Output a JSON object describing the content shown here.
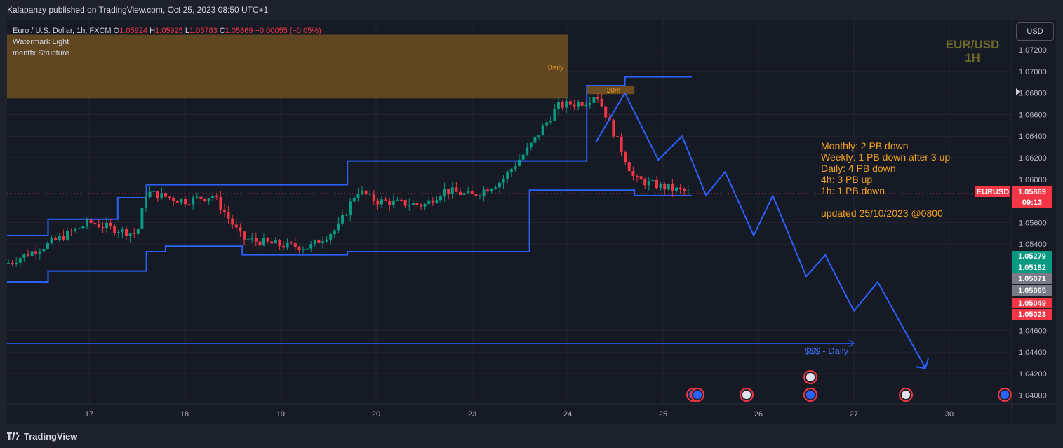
{
  "header": {
    "published": "Kalapanzy published on TradingView.com, Oct 25, 2023 08:50 UTC+1"
  },
  "legend": {
    "symbol": "Euro / U.S. Dollar, 1h, FXCM",
    "o_label": "O",
    "o": "1.05924",
    "h_label": "H",
    "h": "1.05925",
    "l_label": "L",
    "l": "1.05783",
    "c_label": "C",
    "c": "1.05869",
    "change": "−0.00055 (−0.05%)",
    "indicator1": "Watermark Light",
    "indicator2": "mentfx Structure"
  },
  "currency_button": "USD",
  "watermark": {
    "line1": "EUR/USD",
    "line2": "1H"
  },
  "notes": {
    "l1": "Monthly: 2 PB down",
    "l2": "Weekly: 1 PB down after 3 up",
    "l3": "Daily: 4 PB down",
    "l4": "4h: 3 PB up",
    "l5": "1h: 1 PB down",
    "l6": "updated 25/10/2023 @0800"
  },
  "zone_labels": {
    "daily": "Daily",
    "m30": "30m",
    "liquidity": "$$$ - Daily"
  },
  "price_tags": {
    "symbol": "EURUSD",
    "last": "1.05869",
    "countdown": "09:13",
    "t1": "1.05279",
    "t2": "1.05182",
    "t3": "1.05071",
    "t4": "1.05065",
    "t5": "1.05049",
    "t6": "1.05023"
  },
  "footer": {
    "brand": "TradingView"
  },
  "colors": {
    "up": "#089981",
    "down": "#f23645",
    "structure": "#2962ff",
    "zone": "#7a5520",
    "notes": "#f0a020"
  },
  "chart_data": {
    "type": "candlestick",
    "x_ticks": [
      "17",
      "18",
      "19",
      "20",
      "23",
      "24",
      "25",
      "26",
      "27",
      "30"
    ],
    "y_ticks": [
      "1.07200",
      "1.07000",
      "1.06800",
      "1.06600",
      "1.06400",
      "1.06200",
      "1.06000",
      "1.05600",
      "1.05400",
      "1.04600",
      "1.04400",
      "1.04200",
      "1.04000"
    ],
    "ylim": [
      1.0392,
      1.0748
    ],
    "last_price": 1.05869,
    "close_path": [
      [
        "16",
        1.0522
      ],
      [
        "16.5",
        1.054
      ],
      [
        "17",
        1.056
      ],
      [
        "17.5",
        1.0549
      ],
      [
        "17.6",
        1.0588
      ],
      [
        "18",
        1.058
      ],
      [
        "18.3",
        1.0585
      ],
      [
        "18.6",
        1.0545
      ],
      [
        "19",
        1.0539
      ],
      [
        "19.3",
        1.0537
      ],
      [
        "19.6",
        1.0555
      ],
      [
        "19.8",
        1.059
      ],
      [
        "20",
        1.058
      ],
      [
        "20.5",
        1.0576
      ],
      [
        "21",
        1.059
      ],
      [
        "23",
        1.0585
      ],
      [
        "23.3",
        1.0598
      ],
      [
        "23.6",
        1.063
      ],
      [
        "23.9",
        1.0668
      ],
      [
        "24.2",
        1.0672
      ],
      [
        "24.3",
        1.068
      ],
      [
        "24.5",
        1.064
      ],
      [
        "24.7",
        1.06
      ],
      [
        "25",
        1.0593
      ],
      [
        "25.3",
        1.0587
      ]
    ],
    "projection_path": [
      [
        "24.3",
        1.0635
      ],
      [
        "24.6",
        1.068
      ],
      [
        "24.95",
        1.0618
      ],
      [
        "25.2",
        1.064
      ],
      [
        "25.45",
        1.0585
      ],
      [
        "25.65",
        1.0607
      ],
      [
        "25.95",
        1.0548
      ],
      [
        "26.15",
        1.0585
      ],
      [
        "26.5",
        1.051
      ],
      [
        "26.7",
        1.053
      ],
      [
        "27",
        1.0478
      ],
      [
        "27.25",
        1.0505
      ],
      [
        "27.75",
        1.0425
      ]
    ],
    "structure_upper": [
      [
        "16",
        1.0548
      ],
      [
        "16.5",
        1.0563
      ],
      [
        "17.3",
        1.0583
      ],
      [
        "17.6",
        1.0595
      ],
      [
        "19.7",
        1.0617
      ],
      [
        "24.2",
        1.0687
      ],
      [
        "24.6",
        1.0695
      ],
      [
        "25.3",
        1.0695
      ]
    ],
    "structure_lower": [
      [
        "16",
        1.0505
      ],
      [
        "16.5",
        1.0515
      ],
      [
        "17.6",
        1.0533
      ],
      [
        "17.8",
        1.0538
      ],
      [
        "18.6",
        1.053
      ],
      [
        "19.7",
        1.0533
      ],
      [
        "23.6",
        1.059
      ],
      [
        "24.7",
        1.0585
      ],
      [
        "25.3",
        1.0585
      ]
    ],
    "zones": [
      {
        "label": "Daily",
        "from": 1.0675,
        "to": 1.0734
      },
      {
        "label": "30m",
        "from": 1.0679,
        "to": 1.0687
      }
    ],
    "liquidity_line": {
      "label": "$$$ - Daily",
      "price": 1.0448
    }
  }
}
